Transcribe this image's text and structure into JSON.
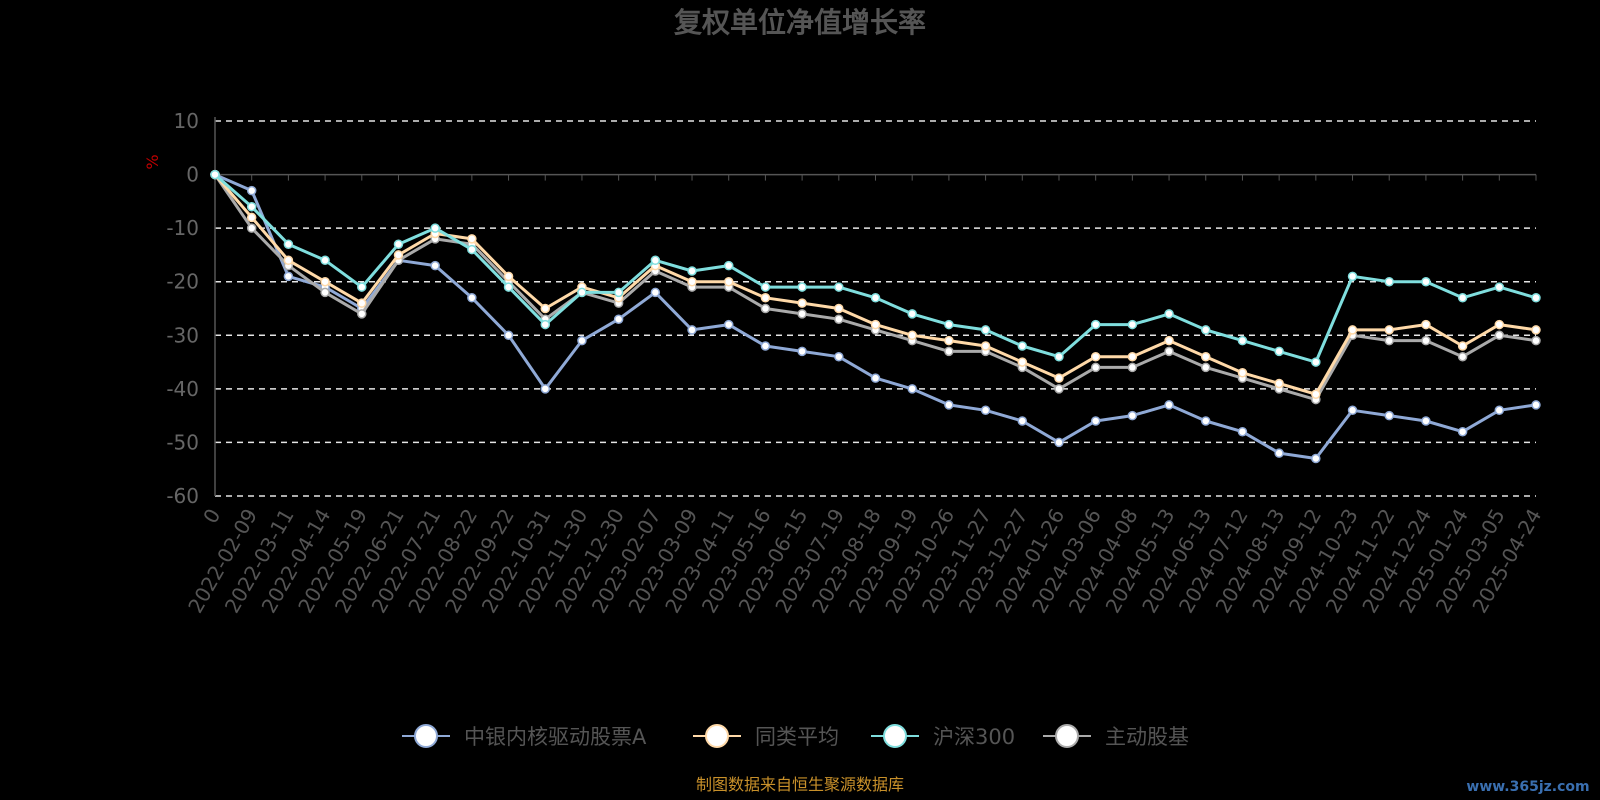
{
  "chart_data": {
    "type": "line",
    "title": "复权单位净值增长率",
    "ylabel": "%",
    "ylim": [
      -60,
      10
    ],
    "yticks": [
      10,
      0,
      -10,
      -20,
      -30,
      -40,
      -50,
      -60
    ],
    "grid": true,
    "legend_position": "bottom",
    "categories": [
      "0",
      "2022-02-09",
      "2022-03-11",
      "2022-04-14",
      "2022-05-19",
      "2022-06-21",
      "2022-07-21",
      "2022-08-22",
      "2022-09-22",
      "2022-10-31",
      "2022-11-30",
      "2022-12-30",
      "2023-02-07",
      "2023-03-09",
      "2023-04-11",
      "2023-05-16",
      "2023-06-15",
      "2023-07-19",
      "2023-08-18",
      "2023-09-19",
      "2023-10-26",
      "2023-11-27",
      "2023-12-27",
      "2024-01-26",
      "2024-03-06",
      "2024-04-08",
      "2024-05-13",
      "2024-06-13",
      "2024-07-12",
      "2024-08-13",
      "2024-09-12",
      "2024-10-23",
      "2024-11-22",
      "2024-12-24",
      "2025-01-24",
      "2025-03-05",
      "2025-04-24"
    ],
    "series": [
      {
        "name": "中银内核驱动股票A",
        "color": "#8fa9d6",
        "values": [
          0,
          -3,
          -19,
          -21,
          -25,
          -16,
          -17,
          -23,
          -30,
          -40,
          -31,
          -27,
          -22,
          -29,
          -28,
          -32,
          -33,
          -34,
          -38,
          -40,
          -43,
          -44,
          -46,
          -50,
          -46,
          -45,
          -43,
          -46,
          -48,
          -52,
          -53,
          -44,
          -45,
          -46,
          -48,
          -44,
          -43
        ]
      },
      {
        "name": "同类平均",
        "color": "#ffd9a8",
        "values": [
          0,
          -8,
          -16,
          -20,
          -24,
          -15,
          -11,
          -12,
          -19,
          -25,
          -21,
          -23,
          -17,
          -20,
          -20,
          -23,
          -24,
          -25,
          -28,
          -30,
          -31,
          -32,
          -35,
          -38,
          -34,
          -34,
          -31,
          -34,
          -37,
          -39,
          -41,
          -29,
          -29,
          -28,
          -32,
          -28,
          -29
        ]
      },
      {
        "name": "沪深300",
        "color": "#7fdede",
        "values": [
          0,
          -6,
          -13,
          -16,
          -21,
          -13,
          -10,
          -14,
          -21,
          -28,
          -22,
          -22,
          -16,
          -18,
          -17,
          -21,
          -21,
          -21,
          -23,
          -26,
          -28,
          -29,
          -32,
          -34,
          -28,
          -28,
          -26,
          -29,
          -31,
          -33,
          -35,
          -19,
          -20,
          -20,
          -23,
          -21,
          -23
        ]
      },
      {
        "name": "主动股基",
        "color": "#aaaaaa",
        "values": [
          0,
          -10,
          -17,
          -22,
          -26,
          -16,
          -12,
          -13,
          -20,
          -27,
          -22,
          -24,
          -18,
          -21,
          -21,
          -25,
          -26,
          -27,
          -29,
          -31,
          -33,
          -33,
          -36,
          -40,
          -36,
          -36,
          -33,
          -36,
          -38,
          -40,
          -42,
          -30,
          -31,
          -31,
          -34,
          -30,
          -31
        ]
      }
    ]
  },
  "source_note": "制图数据来自恒生聚源数据库",
  "watermark": "www.365jz.com"
}
